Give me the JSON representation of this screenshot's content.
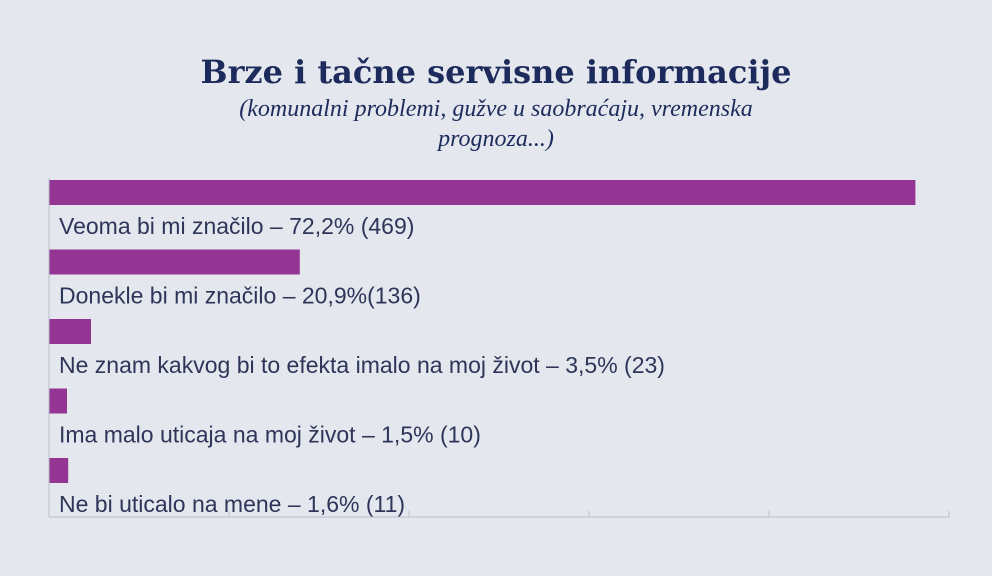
{
  "chart_data": {
    "type": "bar",
    "orientation": "horizontal",
    "title": "Brze i tačne servisne informacije",
    "subtitle": "(komunalni problemi, gužve u saobraćaju, vremenska prognoza...)",
    "xlim": [
      0,
      75
    ],
    "grid": false,
    "bar_color": "#943594",
    "categories": [
      "Veoma bi mi značilo – 72,2% (469)",
      "Donekle bi mi značilo – 20,9%(136)",
      "Ne znam kakvog bi to efekta imalo na moj život – 3,5% (23)",
      "Ima malo uticaja na moj život – 1,5% (10)",
      "Ne bi uticalo na mene – 1,6% (11)"
    ],
    "values": [
      72.2,
      20.9,
      3.5,
      1.5,
      1.6
    ]
  }
}
